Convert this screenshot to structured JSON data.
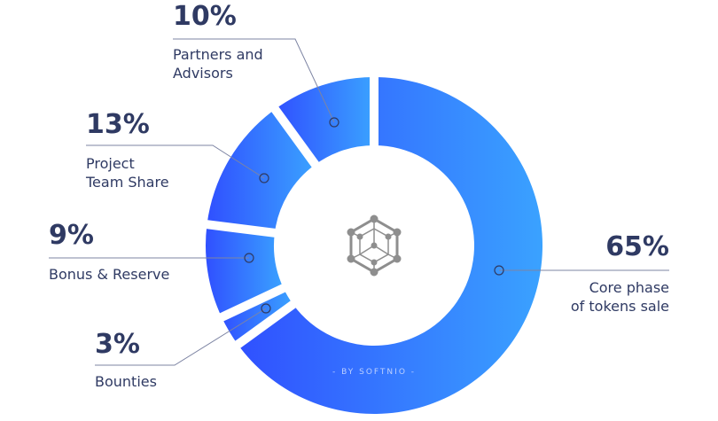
{
  "chart_data": {
    "type": "pie",
    "variant": "donut",
    "slices": [
      {
        "label": "Core phase of tokens sale",
        "label_lines": [
          "Core phase",
          "of tokens sale"
        ],
        "value": 65,
        "value_label": "65%"
      },
      {
        "label": "Bounties",
        "label_lines": [
          "Bounties"
        ],
        "value": 3,
        "value_label": "3%"
      },
      {
        "label": "Bonus & Reserve",
        "label_lines": [
          "Bonus & Reserve"
        ],
        "value": 9,
        "value_label": "9%"
      },
      {
        "label": "Project Team Share",
        "label_lines": [
          "Project",
          "Team Share"
        ],
        "value": 13,
        "value_label": "13%"
      },
      {
        "label": "Partners and Advisors",
        "label_lines": [
          "Partners and",
          "Advisors"
        ],
        "value": 10,
        "value_label": "10%"
      }
    ],
    "start": "top",
    "direction": "clockwise",
    "gradient": {
      "from": "#3050ff",
      "to": "#3aa2ff"
    },
    "watermark": "- BY SOFTNIO -",
    "center_icon": "hexagon-network-icon"
  },
  "colors": {
    "text": "#2f3a63",
    "leader": "#7d84a3",
    "icon": "#8e8e8e"
  }
}
